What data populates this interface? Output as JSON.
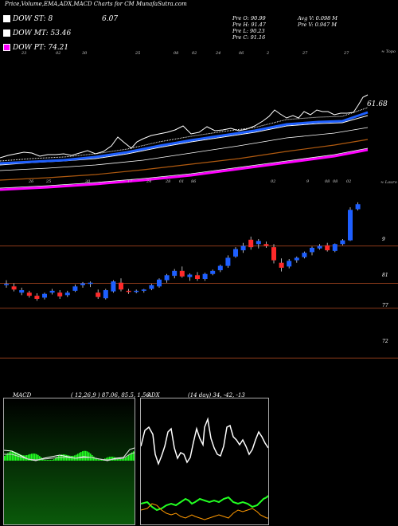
{
  "title": "Price,Volume,EMA,ADX,MACD Charts for CM MunafaSutra.com",
  "legend": [
    {
      "label": "DOW ST: 8",
      "color": "#ffffff",
      "value": "6.07"
    },
    {
      "label": "DOW MT: 53.46",
      "color": "#ffffff",
      "value": ""
    },
    {
      "label": "DOW PT: 74.21",
      "color": "#ff00ff",
      "value": ""
    }
  ],
  "info": {
    "pre_o": "Pre O: 90.99",
    "pre_h": "Pre H: 91.47",
    "pre_l": "Pre L: 90.23",
    "pre_c": "Pre C: 91.16",
    "avg_v": "Avg V: 0.098 M",
    "pre_v": "Pre V: 0.947 M"
  },
  "ema_panel": {
    "last_label": "61.68",
    "top_right_label": "≈ Topo",
    "bottom_right_label": "≈ Lauro",
    "top_ticks": [
      "23",
      "02",
      "30",
      "25",
      "08",
      "02",
      "24",
      "06",
      "2",
      "27",
      "27"
    ],
    "bottom_ticks": [
      "26",
      "25",
      "30",
      "17",
      "24",
      "28",
      "01",
      "86",
      "02",
      "9",
      "08",
      "08",
      "02"
    ]
  },
  "chart_data": {
    "type": "candlestick",
    "y_ticks": [
      "9",
      "81",
      "77",
      "72"
    ],
    "horizontal_levels": [
      94.5,
      88.5,
      84.5,
      76.5
    ],
    "candles": [
      {
        "o": 88.4,
        "h": 89.0,
        "l": 87.8,
        "c": 88.2,
        "color": "blue"
      },
      {
        "o": 88.0,
        "h": 88.5,
        "l": 87.2,
        "c": 87.5,
        "color": "red"
      },
      {
        "o": 87.4,
        "h": 87.8,
        "l": 86.6,
        "c": 87.0,
        "color": "blue"
      },
      {
        "o": 87.0,
        "h": 87.3,
        "l": 86.2,
        "c": 86.5,
        "color": "red"
      },
      {
        "o": 86.5,
        "h": 86.9,
        "l": 85.7,
        "c": 86.0,
        "color": "red"
      },
      {
        "o": 86.2,
        "h": 87.0,
        "l": 85.9,
        "c": 86.8,
        "color": "blue"
      },
      {
        "o": 87.0,
        "h": 87.6,
        "l": 86.7,
        "c": 87.3,
        "color": "blue"
      },
      {
        "o": 87.0,
        "h": 87.4,
        "l": 86.0,
        "c": 86.4,
        "color": "red"
      },
      {
        "o": 86.6,
        "h": 87.3,
        "l": 86.3,
        "c": 87.0,
        "color": "blue"
      },
      {
        "o": 87.3,
        "h": 88.3,
        "l": 87.1,
        "c": 88.0,
        "color": "blue"
      },
      {
        "o": 88.2,
        "h": 88.7,
        "l": 87.8,
        "c": 88.5,
        "color": "blue"
      },
      {
        "o": 88.4,
        "h": 88.8,
        "l": 87.9,
        "c": 88.6,
        "color": "blue"
      },
      {
        "o": 87.0,
        "h": 87.5,
        "l": 86.0,
        "c": 86.3,
        "color": "red"
      },
      {
        "o": 86.1,
        "h": 87.6,
        "l": 85.9,
        "c": 87.4,
        "color": "blue"
      },
      {
        "o": 87.2,
        "h": 89.0,
        "l": 87.0,
        "c": 88.8,
        "color": "blue"
      },
      {
        "o": 88.6,
        "h": 89.3,
        "l": 87.2,
        "c": 87.5,
        "color": "red"
      },
      {
        "o": 87.3,
        "h": 87.6,
        "l": 86.8,
        "c": 87.2,
        "color": "red"
      },
      {
        "o": 87.2,
        "h": 87.5,
        "l": 86.9,
        "c": 87.3,
        "color": "blue"
      },
      {
        "o": 87.3,
        "h": 87.6,
        "l": 87.0,
        "c": 87.5,
        "color": "blue"
      },
      {
        "o": 87.6,
        "h": 88.4,
        "l": 87.4,
        "c": 88.2,
        "color": "blue"
      },
      {
        "o": 88.0,
        "h": 89.3,
        "l": 87.8,
        "c": 89.1,
        "color": "blue"
      },
      {
        "o": 89.0,
        "h": 90.0,
        "l": 88.6,
        "c": 89.8,
        "color": "blue"
      },
      {
        "o": 89.7,
        "h": 90.8,
        "l": 89.3,
        "c": 90.5,
        "color": "blue"
      },
      {
        "o": 90.5,
        "h": 91.2,
        "l": 89.4,
        "c": 89.6,
        "color": "red"
      },
      {
        "o": 89.5,
        "h": 90.1,
        "l": 88.9,
        "c": 89.9,
        "color": "blue"
      },
      {
        "o": 89.8,
        "h": 90.3,
        "l": 88.9,
        "c": 89.2,
        "color": "red"
      },
      {
        "o": 89.2,
        "h": 90.2,
        "l": 88.9,
        "c": 90.0,
        "color": "blue"
      },
      {
        "o": 90.0,
        "h": 90.7,
        "l": 89.8,
        "c": 90.5,
        "color": "blue"
      },
      {
        "o": 90.6,
        "h": 91.5,
        "l": 90.3,
        "c": 91.3,
        "color": "blue"
      },
      {
        "o": 91.3,
        "h": 93.0,
        "l": 91.0,
        "c": 92.6,
        "color": "blue"
      },
      {
        "o": 92.8,
        "h": 94.3,
        "l": 92.6,
        "c": 94.0,
        "color": "blue"
      },
      {
        "o": 94.5,
        "h": 95.0,
        "l": 93.4,
        "c": 93.8,
        "color": "blue"
      },
      {
        "o": 95.5,
        "h": 96.0,
        "l": 93.9,
        "c": 94.3,
        "color": "red"
      },
      {
        "o": 94.8,
        "h": 95.6,
        "l": 94.1,
        "c": 95.3,
        "color": "blue"
      },
      {
        "o": 94.8,
        "h": 95.2,
        "l": 94.2,
        "c": 94.5,
        "color": "red"
      },
      {
        "o": 94.3,
        "h": 94.8,
        "l": 91.7,
        "c": 92.2,
        "color": "red"
      },
      {
        "o": 91.8,
        "h": 92.5,
        "l": 90.4,
        "c": 91.0,
        "color": "red"
      },
      {
        "o": 91.2,
        "h": 92.4,
        "l": 90.9,
        "c": 92.1,
        "color": "blue"
      },
      {
        "o": 92.2,
        "h": 92.8,
        "l": 91.8,
        "c": 92.6,
        "color": "blue"
      },
      {
        "o": 92.7,
        "h": 93.6,
        "l": 92.5,
        "c": 93.4,
        "color": "blue"
      },
      {
        "o": 93.5,
        "h": 94.4,
        "l": 93.0,
        "c": 94.2,
        "color": "blue"
      },
      {
        "o": 94.1,
        "h": 94.8,
        "l": 93.9,
        "c": 94.5,
        "color": "blue"
      },
      {
        "o": 94.6,
        "h": 95.0,
        "l": 93.6,
        "c": 93.8,
        "color": "red"
      },
      {
        "o": 93.7,
        "h": 94.9,
        "l": 93.5,
        "c": 94.8,
        "color": "blue"
      },
      {
        "o": 94.8,
        "h": 95.6,
        "l": 94.6,
        "c": 95.4,
        "color": "blue"
      },
      {
        "o": 95.4,
        "h": 100.7,
        "l": 95.3,
        "c": 100.3,
        "color": "blue"
      },
      {
        "o": 100.4,
        "h": 101.5,
        "l": 100.2,
        "c": 101.2,
        "color": "blue"
      }
    ]
  },
  "macd": {
    "label": "MACD",
    "params": "( 12,26,9 ) 87.06,  85.5,  1.56"
  },
  "adx": {
    "label": "ADX",
    "params": "(14 day) 34,  -42,  -13"
  }
}
